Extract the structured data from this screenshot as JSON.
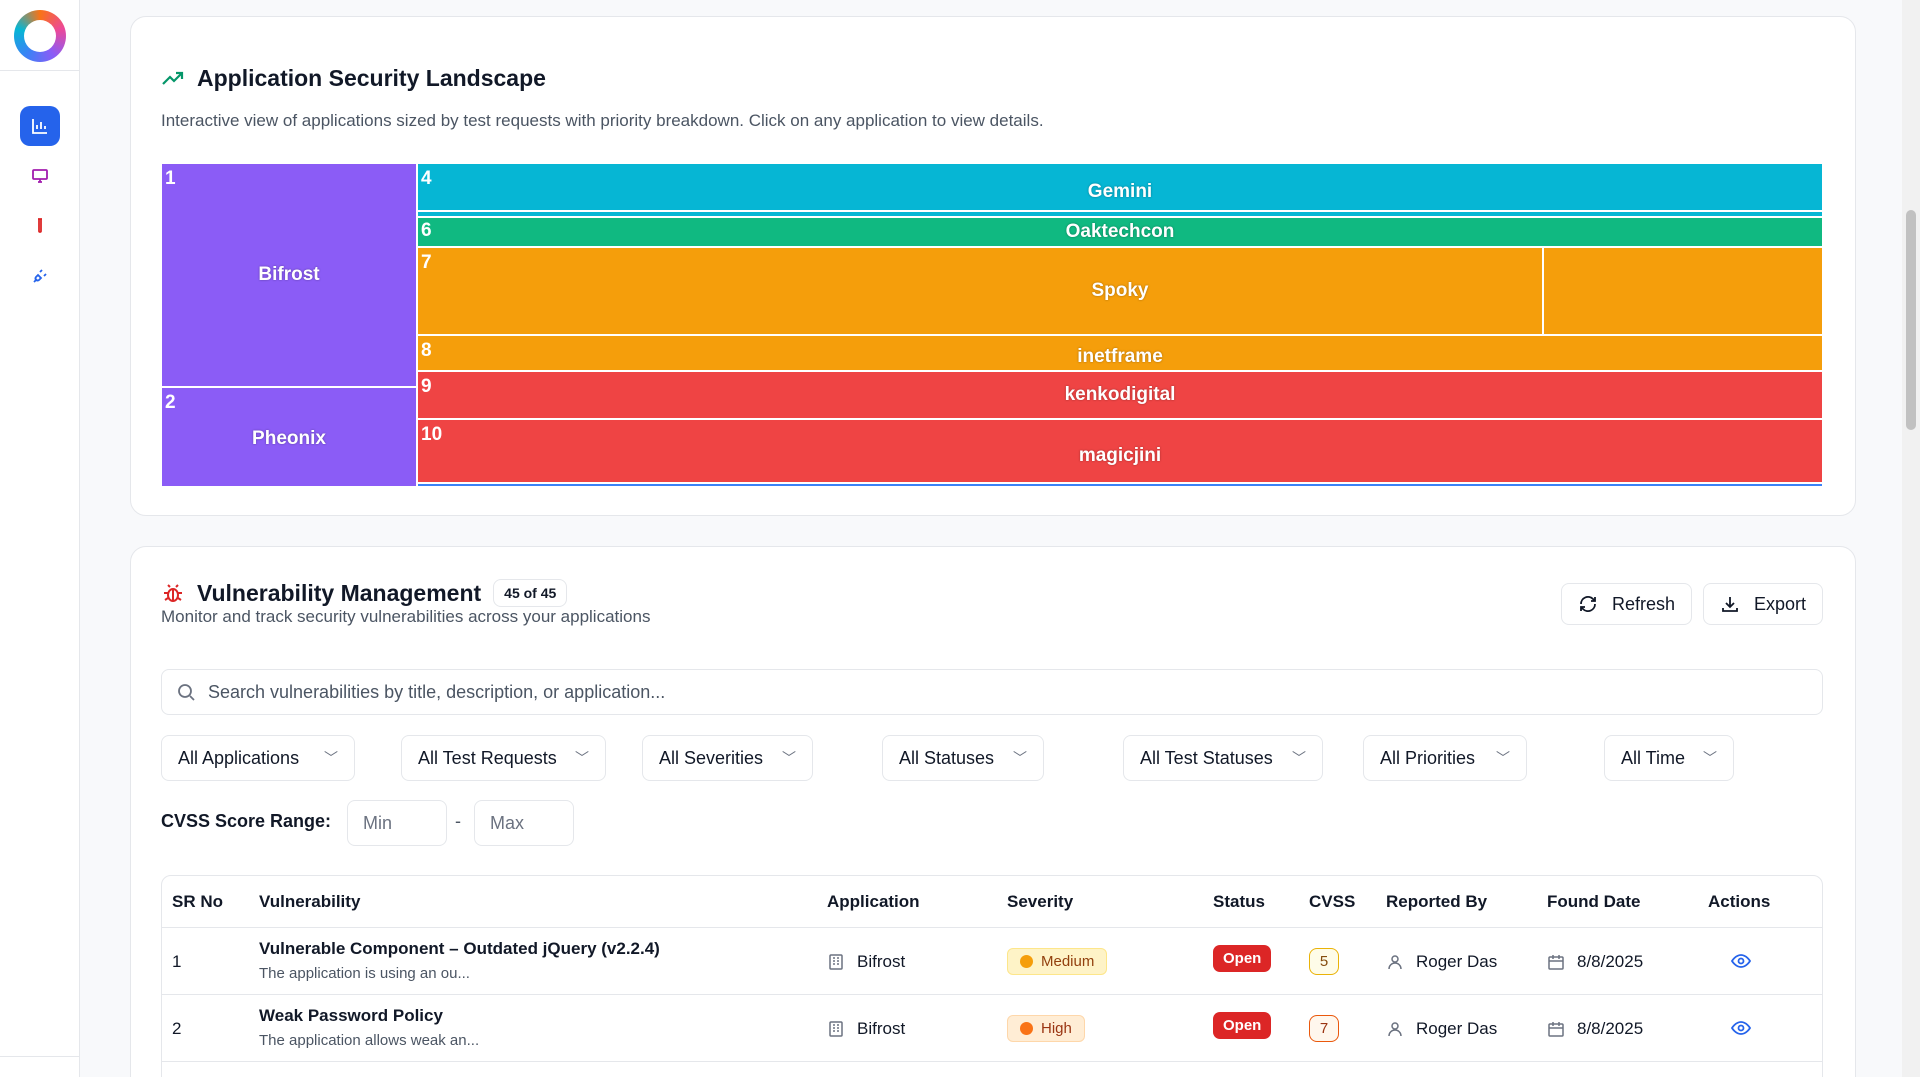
{
  "sidebar": {
    "logo": "app-logo",
    "items": [
      {
        "icon": "bar-chart-icon",
        "active": true
      },
      {
        "icon": "monitor-icon",
        "active": false
      },
      {
        "icon": "test-tube-icon",
        "active": false
      },
      {
        "icon": "plug-icon",
        "active": false
      }
    ]
  },
  "landscape": {
    "title": "Application Security Landscape",
    "description": "Interactive view of applications sized by test requests with priority breakdown. Click on any application to view details.",
    "tiles": [
      {
        "num": "1",
        "label": "Bifrost",
        "color": "#8b5cf6"
      },
      {
        "num": "2",
        "label": "Pheonix",
        "color": "#8b5cf6"
      },
      {
        "num": "4",
        "label": "Gemini",
        "color": "#06b6d4"
      },
      {
        "num": "6",
        "label": "Oaktechcon",
        "color": "#10b981"
      },
      {
        "num": "7",
        "label": "Spoky",
        "color": "#f59e0b"
      },
      {
        "num": "8",
        "label": "inetframe",
        "color": "#f59e0b"
      },
      {
        "num": "9",
        "label": "kenkodigital",
        "color": "#ef4444"
      },
      {
        "num": "10",
        "label": "magicjini",
        "color": "#ef4444"
      }
    ]
  },
  "vuln": {
    "title": "Vulnerability Management",
    "count_badge": "45 of 45",
    "description": "Monitor and track security vulnerabilities across your applications",
    "refresh_label": "Refresh",
    "export_label": "Export",
    "search_placeholder": "Search vulnerabilities by title, description, or application...",
    "filters": [
      "All Applications",
      "All Test Requests",
      "All Severities",
      "All Statuses",
      "All Test Statuses",
      "All Priorities",
      "All Time"
    ],
    "cvss_label": "CVSS Score Range:",
    "cvss_min_placeholder": "Min",
    "cvss_max_placeholder": "Max",
    "cvss_dash": "-",
    "columns": [
      "SR No",
      "Vulnerability",
      "Application",
      "Severity",
      "Status",
      "CVSS",
      "Reported By",
      "Found Date",
      "Actions"
    ],
    "rows": [
      {
        "sr": "1",
        "title": "Vulnerable Component – Outdated jQuery (v2.2.4)",
        "desc": "The application is using an ou...",
        "app": "Bifrost",
        "severity": "Medium",
        "status": "Open",
        "cvss": "5",
        "reporter": "Roger Das",
        "date": "8/8/2025"
      },
      {
        "sr": "2",
        "title": "Weak Password Policy",
        "desc": "The application allows weak an...",
        "app": "Bifrost",
        "severity": "High",
        "status": "Open",
        "cvss": "7",
        "reporter": "Roger Das",
        "date": "8/8/2025"
      }
    ]
  }
}
